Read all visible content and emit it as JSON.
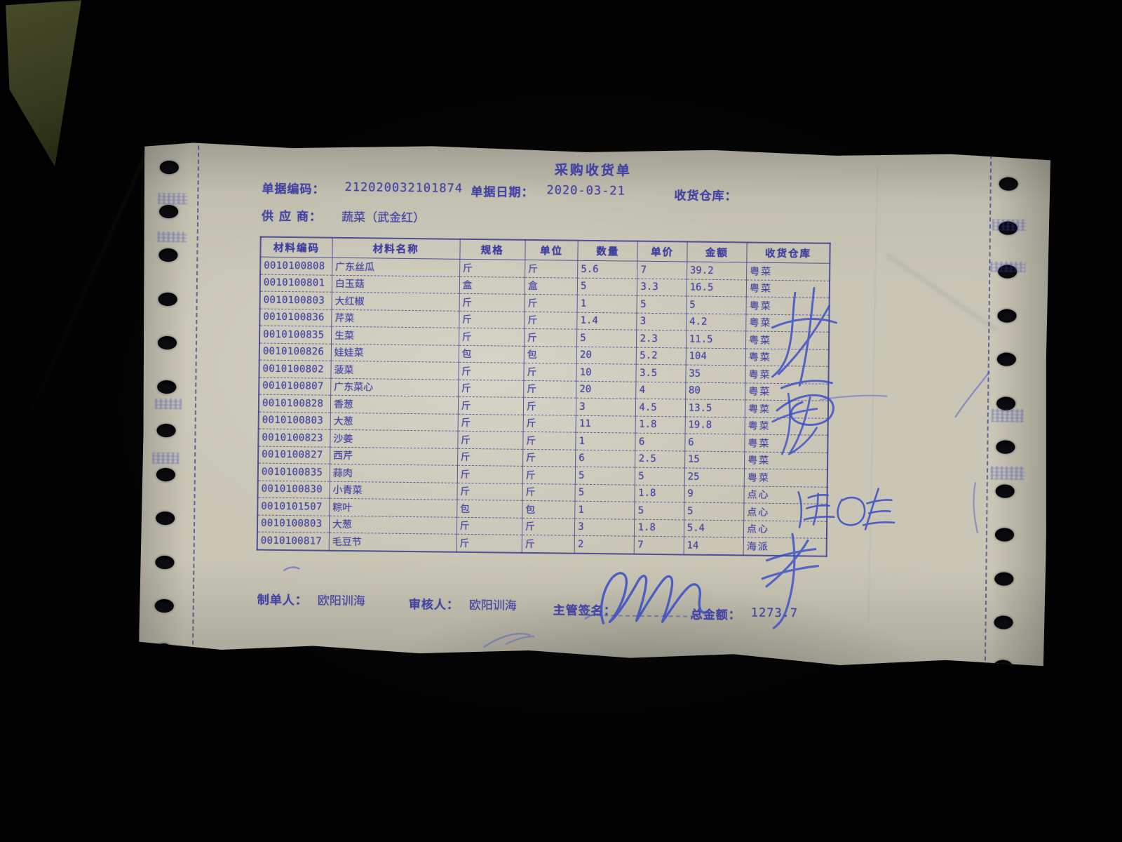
{
  "doc": {
    "title": "采购收货单",
    "header": {
      "code_label": "单据编码：",
      "code_value": "212020032101874",
      "date_label": "单据日期：",
      "date_value": "2020-03-21",
      "warehouse_label": "收货仓库：",
      "supplier_label": "供 应 商：",
      "supplier_value": "蔬菜（武金红）"
    },
    "table": {
      "columns": [
        "材料编码",
        "材料名称",
        "规格",
        "单位",
        "数量",
        "单价",
        "金额",
        "收货仓库"
      ],
      "rows": [
        [
          "0010100808",
          "广东丝瓜",
          "斤",
          "斤",
          "5.6",
          "7",
          "39.2",
          "粤菜"
        ],
        [
          "0010100801",
          "白玉菇",
          "盒",
          "盒",
          "5",
          "3.3",
          "16.5",
          "粤菜"
        ],
        [
          "0010100803",
          "大红椒",
          "斤",
          "斤",
          "1",
          "5",
          "5",
          "粤菜"
        ],
        [
          "0010100836",
          "芹菜",
          "斤",
          "斤",
          "1.4",
          "3",
          "4.2",
          "粤菜"
        ],
        [
          "0010100835",
          "生菜",
          "斤",
          "斤",
          "5",
          "2.3",
          "11.5",
          "粤菜"
        ],
        [
          "0010100826",
          "娃娃菜",
          "包",
          "包",
          "20",
          "5.2",
          "104",
          "粤菜"
        ],
        [
          "0010100802",
          "菠菜",
          "斤",
          "斤",
          "10",
          "3.5",
          "35",
          "粤菜"
        ],
        [
          "0010100807",
          "广东菜心",
          "斤",
          "斤",
          "20",
          "4",
          "80",
          "粤菜"
        ],
        [
          "0010100828",
          "香葱",
          "斤",
          "斤",
          "3",
          "4.5",
          "13.5",
          "粤菜"
        ],
        [
          "0010100803",
          "大葱",
          "斤",
          "斤",
          "11",
          "1.8",
          "19.8",
          "粤菜"
        ],
        [
          "0010100823",
          "沙姜",
          "斤",
          "斤",
          "1",
          "6",
          "6",
          "粤菜"
        ],
        [
          "0010100827",
          "西芹",
          "斤",
          "斤",
          "6",
          "2.5",
          "15",
          "粤菜"
        ],
        [
          "0010100835",
          "蒜肉",
          "斤",
          "斤",
          "5",
          "5",
          "25",
          "粤菜"
        ],
        [
          "0010100830",
          "小青菜",
          "斤",
          "斤",
          "5",
          "1.8",
          "9",
          "点心"
        ],
        [
          "0010101507",
          "粽叶",
          "包",
          "包",
          "1",
          "5",
          "5",
          "点心"
        ],
        [
          "0010100803",
          "大葱",
          "斤",
          "斤",
          "3",
          "1.8",
          "5.4",
          "点心"
        ],
        [
          "0010100817",
          "毛豆节",
          "斤",
          "斤",
          "2",
          "7",
          "14",
          "海派"
        ]
      ]
    },
    "footer": {
      "maker_label": "制单人：",
      "maker_value": "欧阳训海",
      "auditor_label": "审核人：",
      "auditor_value": "欧阳训海",
      "sign_label": "主管签名：",
      "total_label": "总金额：",
      "total_value": "1273.7"
    },
    "handwriting_transcription": {
      "margin_signature_1": "林海",
      "margin_mark_2": "托",
      "margin_signature_3": "王四生",
      "margin_mark_4": "孝",
      "supervisor_signature": "（潦草签名）"
    },
    "colors": {
      "print_ink": "#4343a2",
      "pen_ink": "#3a4ec6",
      "paper": "#c9c6b6",
      "background": "#050505"
    }
  }
}
